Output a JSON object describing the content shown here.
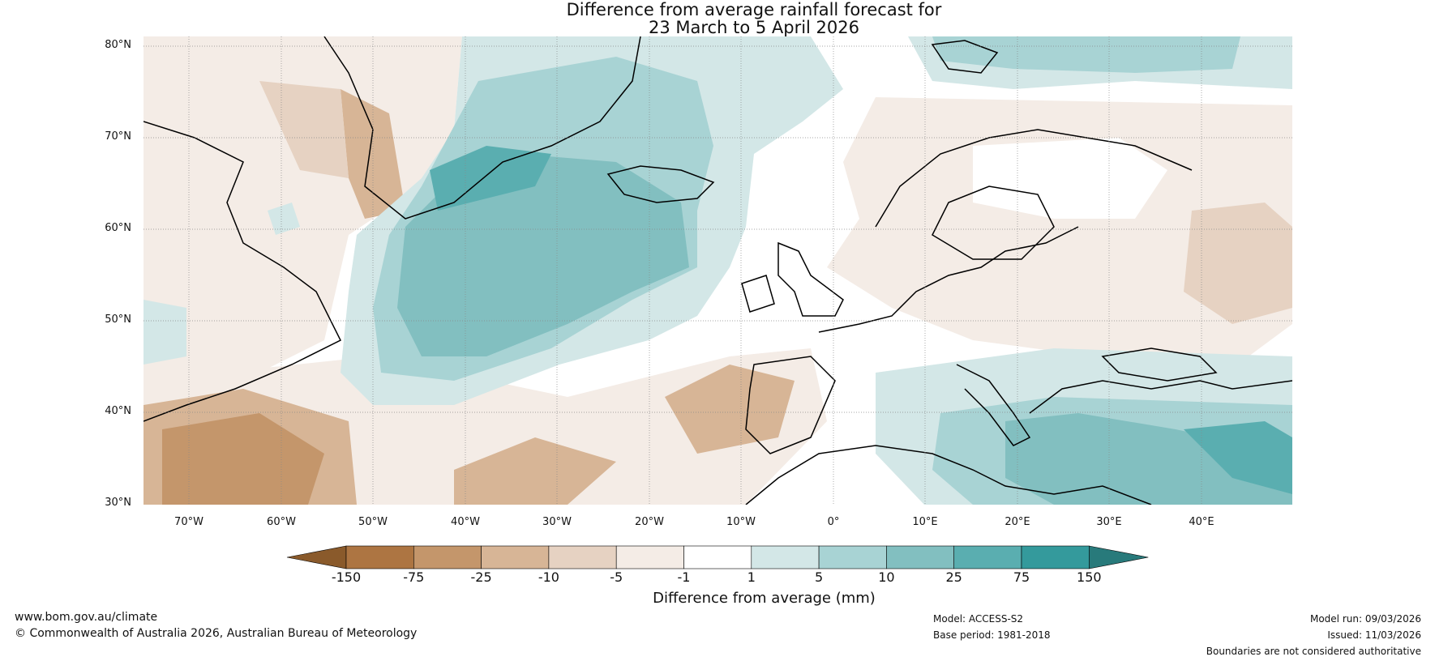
{
  "title": {
    "line1": "Difference from average rainfall forecast for",
    "line2": "23 March to 5 April 2026"
  },
  "map": {
    "lat_labels": [
      "80°N",
      "70°N",
      "60°N",
      "50°N",
      "40°N",
      "30°N"
    ],
    "lon_labels": [
      "70°W",
      "60°W",
      "50°W",
      "40°W",
      "30°W",
      "20°W",
      "10°W",
      "0°",
      "10°E",
      "20°E",
      "30°E",
      "40°E"
    ]
  },
  "colorbar": {
    "title": "Difference from average (mm)",
    "tick_labels": [
      "-150",
      "-75",
      "-25",
      "-10",
      "-5",
      "-1",
      "1",
      "5",
      "10",
      "25",
      "75",
      "150"
    ],
    "colors": [
      "#8a5a2b",
      "#ad7542",
      "#c4966b",
      "#d7b596",
      "#e6d2c2",
      "#f4ece6",
      "#ffffff",
      "#d3e7e7",
      "#a8d3d4",
      "#82bfc0",
      "#5aaeb0",
      "#349a9c",
      "#287a7b"
    ]
  },
  "footer": {
    "website": "www.bom.gov.au/climate",
    "copyright": "© Commonwealth of Australia 2026, Australian Bureau of Meteorology",
    "model": "Model: ACCESS-S2",
    "base_period": "Base period: 1981-2018",
    "model_run": "Model run: 09/03/2026",
    "issued": "Issued: 11/03/2026",
    "disclaimer": "Boundaries are not considered authoritative"
  }
}
